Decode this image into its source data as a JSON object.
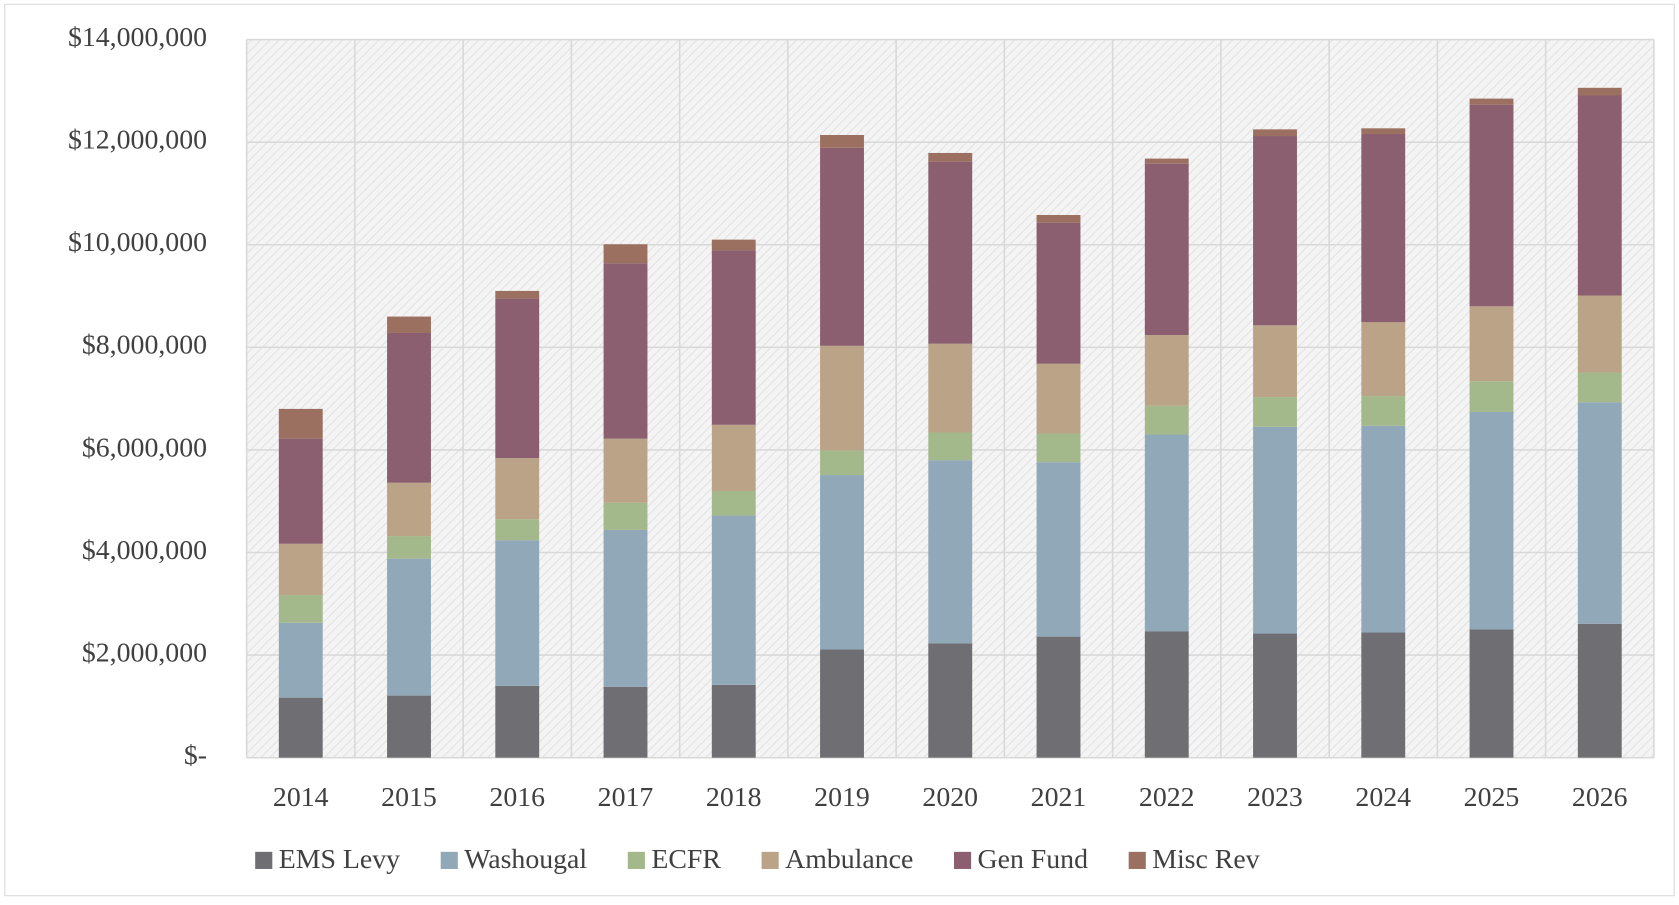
{
  "chart_data": {
    "type": "stacked_bar",
    "categories": [
      "2014",
      "2015",
      "2016",
      "2017",
      "2018",
      "2019",
      "2020",
      "2021",
      "2022",
      "2023",
      "2024",
      "2025",
      "2026"
    ],
    "series": [
      {
        "name": "EMS Levy",
        "color": "#6e6e73",
        "values": [
          1170000,
          1210000,
          1400000,
          1380000,
          1420000,
          2110000,
          2230000,
          2360000,
          2460000,
          2420000,
          2440000,
          2500000,
          2610000
        ]
      },
      {
        "name": "Washougal",
        "color": "#91a8b9",
        "values": [
          1460000,
          2670000,
          2840000,
          3060000,
          3300000,
          3400000,
          3570000,
          3400000,
          3840000,
          4030000,
          4030000,
          4240000,
          4320000
        ]
      },
      {
        "name": "ECFR",
        "color": "#a3b98c",
        "values": [
          540000,
          440000,
          410000,
          530000,
          480000,
          480000,
          540000,
          560000,
          560000,
          580000,
          580000,
          600000,
          580000
        ]
      },
      {
        "name": "Ambulance",
        "color": "#baa387",
        "values": [
          1000000,
          1040000,
          1190000,
          1250000,
          1290000,
          2040000,
          1730000,
          1360000,
          1380000,
          1400000,
          1440000,
          1460000,
          1500000
        ]
      },
      {
        "name": "Gen Fund",
        "color": "#8b5f6f",
        "values": [
          2050000,
          2920000,
          3110000,
          3420000,
          3400000,
          3860000,
          3550000,
          2750000,
          3340000,
          3690000,
          3670000,
          3930000,
          3900000
        ]
      },
      {
        "name": "Misc Rev",
        "color": "#9c7060",
        "values": [
          580000,
          320000,
          150000,
          370000,
          210000,
          250000,
          170000,
          150000,
          100000,
          130000,
          110000,
          120000,
          150000
        ]
      }
    ],
    "ylim": [
      0,
      14000000
    ],
    "yticks": [
      {
        "value": 0,
        "label": "$-"
      },
      {
        "value": 2000000,
        "label": "$2,000,000"
      },
      {
        "value": 4000000,
        "label": "$4,000,000"
      },
      {
        "value": 6000000,
        "label": "$6,000,000"
      },
      {
        "value": 8000000,
        "label": "$8,000,000"
      },
      {
        "value": 10000000,
        "label": "$10,000,000"
      },
      {
        "value": 12000000,
        "label": "$12,000,000"
      },
      {
        "value": 14000000,
        "label": "$14,000,000"
      }
    ],
    "grid": true,
    "legend": "bottom"
  }
}
